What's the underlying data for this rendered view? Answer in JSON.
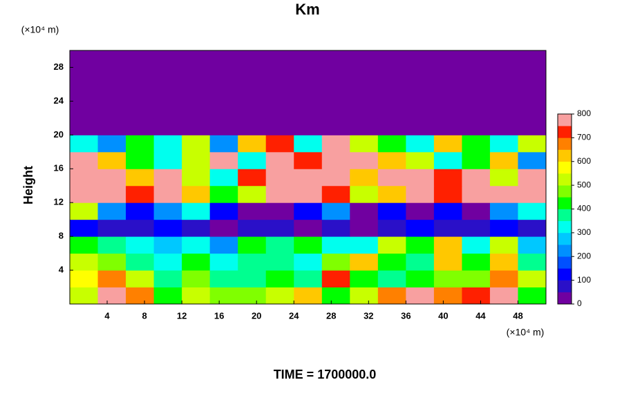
{
  "chart_data": {
    "type": "heatmap",
    "title": "Km",
    "y_label": "Height",
    "y_unit": "(×10⁴ m)",
    "x_unit": "(×10⁴ m)",
    "annotation": "TIME = 1700000.0",
    "xlim": [
      0,
      51
    ],
    "ylim": [
      0,
      30
    ],
    "xticks": [
      4,
      8,
      12,
      16,
      20,
      24,
      28,
      32,
      36,
      40,
      44,
      48
    ],
    "yticks": [
      4,
      8,
      12,
      16,
      20,
      24,
      28
    ],
    "x": [
      1.5,
      4.5,
      7.5,
      10.5,
      13.5,
      16.5,
      19.5,
      22.5,
      25.5,
      28.5,
      31.5,
      34.5,
      37.5,
      40.5,
      43.5,
      46.5,
      49.5
    ],
    "y": [
      1,
      3,
      5,
      7,
      9,
      11,
      13,
      15,
      17,
      19,
      21,
      23,
      25,
      27,
      29
    ],
    "z": [
      [
        500,
        750,
        650,
        400,
        500,
        450,
        450,
        500,
        600,
        400,
        500,
        650,
        750,
        650,
        700,
        750,
        400
      ],
      [
        550,
        650,
        500,
        350,
        450,
        350,
        350,
        400,
        350,
        700,
        400,
        350,
        400,
        450,
        450,
        650,
        500
      ],
      [
        500,
        450,
        350,
        300,
        400,
        300,
        350,
        350,
        300,
        450,
        600,
        400,
        350,
        600,
        400,
        600,
        350
      ],
      [
        400,
        350,
        300,
        250,
        300,
        200,
        400,
        350,
        400,
        300,
        300,
        500,
        400,
        600,
        300,
        500,
        250
      ],
      [
        100,
        50,
        50,
        100,
        50,
        0,
        50,
        50,
        0,
        50,
        0,
        50,
        100,
        50,
        50,
        100,
        50
      ],
      [
        500,
        200,
        100,
        200,
        300,
        100,
        0,
        0,
        100,
        200,
        0,
        100,
        0,
        100,
        0,
        200,
        300
      ],
      [
        800,
        800,
        700,
        800,
        600,
        400,
        500,
        800,
        800,
        700,
        500,
        600,
        800,
        700,
        800,
        800,
        800
      ],
      [
        800,
        800,
        600,
        800,
        500,
        300,
        700,
        800,
        800,
        800,
        600,
        800,
        800,
        700,
        800,
        500,
        800
      ],
      [
        800,
        600,
        400,
        300,
        500,
        800,
        300,
        800,
        700,
        800,
        800,
        600,
        500,
        300,
        400,
        600,
        200
      ],
      [
        300,
        200,
        400,
        300,
        500,
        200,
        600,
        700,
        300,
        800,
        500,
        400,
        300,
        600,
        400,
        300,
        500
      ],
      [
        0,
        0,
        0,
        0,
        0,
        0,
        0,
        0,
        0,
        0,
        0,
        0,
        0,
        0,
        0,
        0,
        0
      ],
      [
        0,
        0,
        0,
        0,
        0,
        0,
        0,
        0,
        0,
        0,
        0,
        0,
        0,
        0,
        0,
        0,
        0
      ],
      [
        0,
        0,
        0,
        0,
        0,
        0,
        0,
        0,
        0,
        0,
        0,
        0,
        0,
        0,
        0,
        0,
        0
      ],
      [
        0,
        0,
        0,
        0,
        0,
        0,
        0,
        0,
        0,
        0,
        0,
        0,
        0,
        0,
        0,
        0,
        0
      ],
      [
        0,
        0,
        0,
        0,
        0,
        0,
        0,
        0,
        0,
        0,
        0,
        0,
        0,
        0,
        0,
        0,
        0
      ]
    ],
    "clim": [
      0,
      800
    ],
    "cticks": [
      0,
      100,
      200,
      300,
      400,
      500,
      600,
      700,
      800
    ],
    "colors": [
      "#7000a0",
      "#2a10c8",
      "#0000ff",
      "#0050ff",
      "#0090ff",
      "#00c8ff",
      "#00ffee",
      "#00ff90",
      "#00ff00",
      "#80ff00",
      "#c8ff00",
      "#ffff00",
      "#ffc800",
      "#ff8000",
      "#ff2000",
      "#f8a0a0"
    ]
  }
}
